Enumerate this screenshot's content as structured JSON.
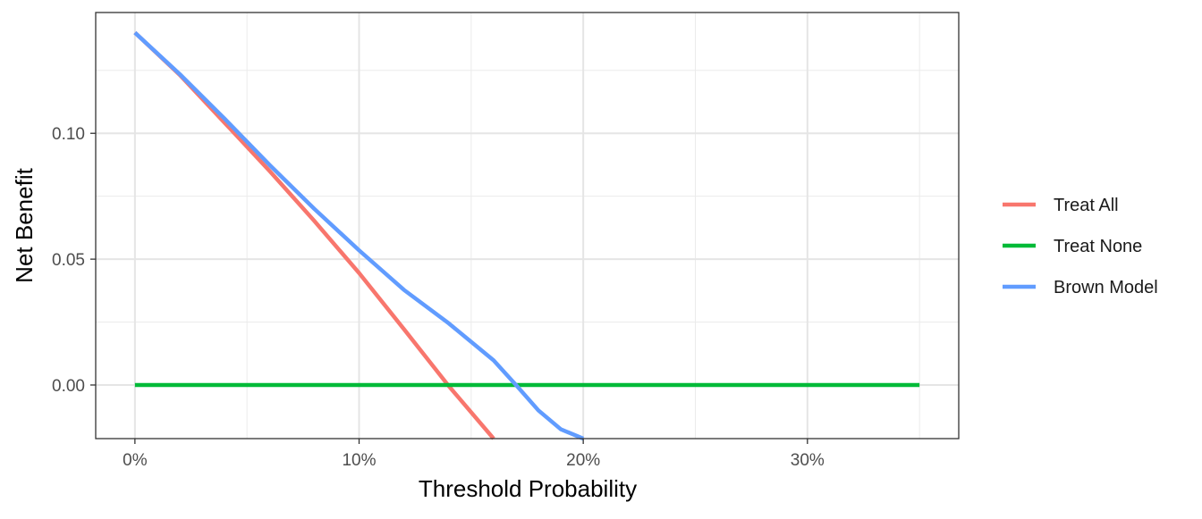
{
  "chart_data": {
    "type": "line",
    "title": "",
    "xlabel": "Threshold Probability",
    "ylabel": "Net Benefit",
    "xlim": [
      -0.0175,
      0.3675
    ],
    "ylim": [
      -0.0213,
      0.148
    ],
    "x_ticks": [
      {
        "value": 0.0,
        "label": "0%"
      },
      {
        "value": 0.1,
        "label": "10%"
      },
      {
        "value": 0.2,
        "label": "20%"
      },
      {
        "value": 0.3,
        "label": "30%"
      }
    ],
    "y_ticks": [
      {
        "value": 0.0,
        "label": "0.00"
      },
      {
        "value": 0.05,
        "label": "0.05"
      },
      {
        "value": 0.1,
        "label": "0.10"
      }
    ],
    "x_minor": [
      0.05,
      0.15,
      0.25,
      0.35
    ],
    "y_minor": [
      -0.025,
      0.025,
      0.075,
      0.125
    ],
    "grid": true,
    "legend_position": "right",
    "series": [
      {
        "name": "Treat All",
        "color": "#F8766D",
        "x": [
          0.0,
          0.02,
          0.04,
          0.06,
          0.08,
          0.1,
          0.12,
          0.14,
          0.16
        ],
        "y": [
          0.14,
          0.1232,
          0.1042,
          0.0851,
          0.0652,
          0.0445,
          0.0222,
          -0.0004,
          -0.0213
        ]
      },
      {
        "name": "Treat None",
        "color": "#00BA38",
        "x": [
          0.0,
          0.35
        ],
        "y": [
          0.0,
          0.0
        ]
      },
      {
        "name": "Brown Model",
        "color": "#619CFF",
        "x": [
          0.0,
          0.02,
          0.04,
          0.06,
          0.08,
          0.1,
          0.12,
          0.14,
          0.16,
          0.17,
          0.18,
          0.19,
          0.2
        ],
        "y": [
          0.14,
          0.1235,
          0.1058,
          0.0875,
          0.07,
          0.0535,
          0.0378,
          0.0245,
          0.0098,
          0.0,
          -0.0101,
          -0.0176,
          -0.0213
        ]
      }
    ]
  }
}
